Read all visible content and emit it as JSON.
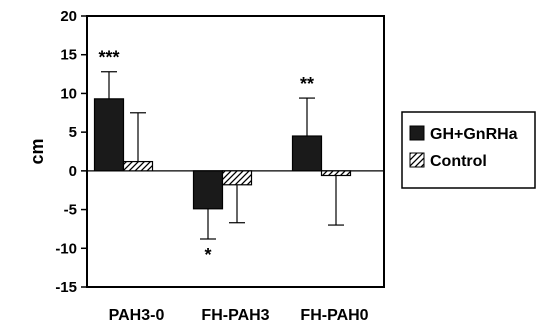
{
  "chart_data": {
    "type": "bar",
    "categories": [
      "PAH3-0",
      "FH-PAH3",
      "FH-PAH0"
    ],
    "ylabel": "cm",
    "xlabel": "",
    "ylim": [
      -15,
      20
    ],
    "yticks": [
      20,
      15,
      10,
      5,
      0,
      -5,
      -10,
      -15
    ],
    "grid": false,
    "legend_position": "right",
    "series": [
      {
        "name": "GH+GnRHa",
        "values": [
          9.3,
          -4.9,
          4.5
        ],
        "error": [
          3.5,
          3.9,
          4.9
        ],
        "color": "#1a1a1a",
        "pattern": "solid"
      },
      {
        "name": "Control",
        "values": [
          1.2,
          -1.8,
          -0.6
        ],
        "error": [
          6.3,
          4.9,
          6.4
        ],
        "color": "#ffffff",
        "pattern": "diagonal-hatch"
      }
    ],
    "annotations": [
      {
        "text": "***",
        "category": 0,
        "series": 0
      },
      {
        "text": "*",
        "category": 1,
        "series": 0
      },
      {
        "text": "**",
        "category": 2,
        "series": 0
      }
    ]
  }
}
